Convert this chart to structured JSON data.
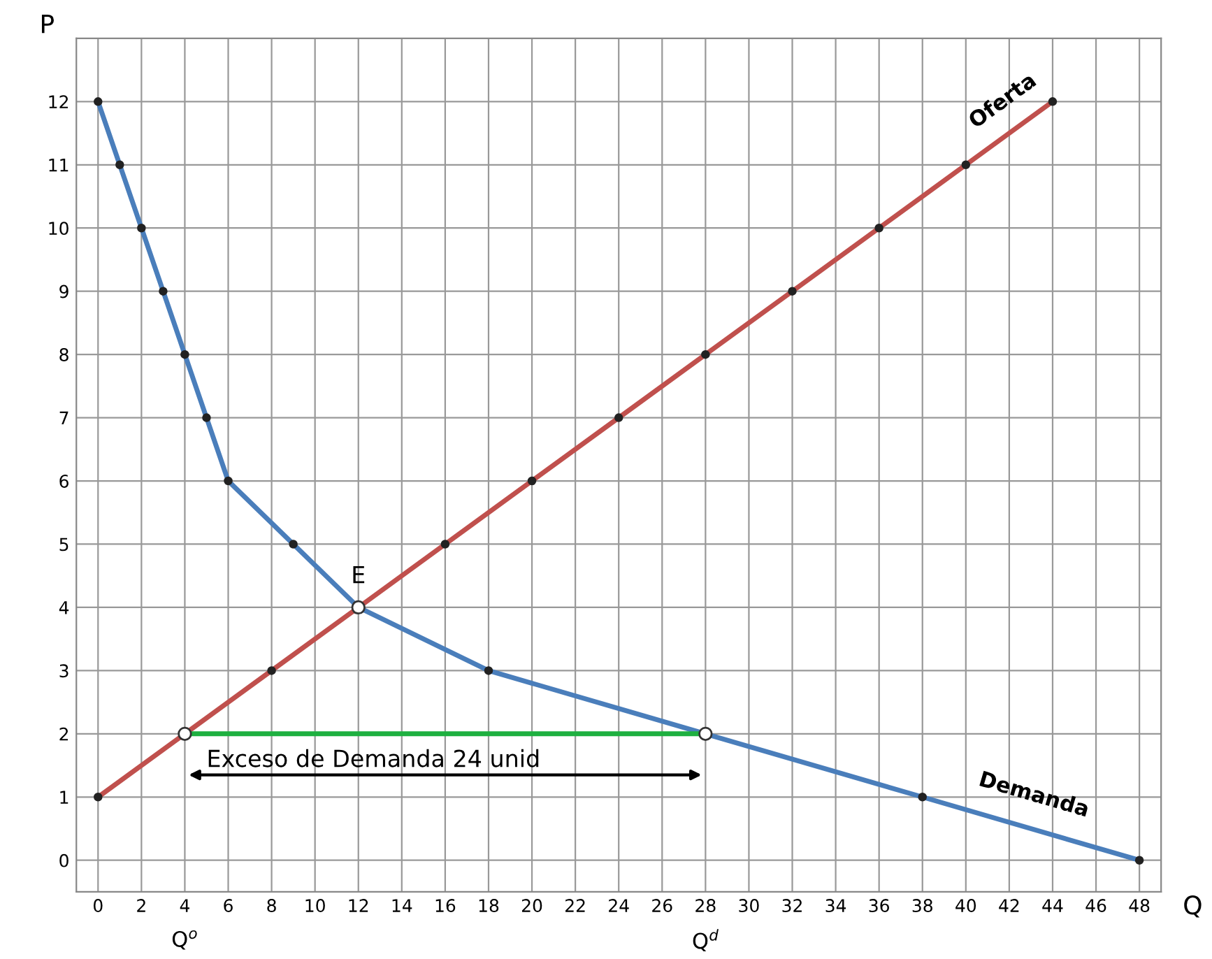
{
  "chart_data": {
    "type": "line",
    "xlabel": "Q",
    "ylabel": "P",
    "xlim": [
      -1,
      49
    ],
    "ylim": [
      -0.5,
      13
    ],
    "xticks": [
      0,
      2,
      4,
      6,
      8,
      10,
      12,
      14,
      16,
      18,
      20,
      22,
      24,
      26,
      28,
      30,
      32,
      34,
      36,
      38,
      40,
      42,
      44,
      46,
      48
    ],
    "yticks": [
      0,
      1,
      2,
      3,
      4,
      5,
      6,
      7,
      8,
      9,
      10,
      11,
      12
    ],
    "grid": true,
    "legend": false,
    "series": [
      {
        "name": "Demanda",
        "color": "#4a7ebb",
        "marker": "circle",
        "x": [
          0,
          1,
          2,
          3,
          4,
          5,
          6,
          9,
          12,
          18,
          28,
          38,
          48
        ],
        "values": [
          12,
          11,
          10,
          9,
          8,
          7,
          6,
          5,
          4,
          3,
          2,
          1,
          0
        ]
      },
      {
        "name": "Oferta",
        "color": "#c0504d",
        "marker": "circle",
        "x": [
          0,
          4,
          8,
          12,
          16,
          20,
          24,
          28,
          32,
          36,
          40,
          44
        ],
        "values": [
          1,
          2,
          3,
          4,
          5,
          6,
          7,
          8,
          9,
          10,
          11,
          12
        ]
      },
      {
        "type": "line",
        "color": "#1eb040",
        "marker": "none",
        "x": [
          4,
          28
        ],
        "values": [
          2,
          2
        ]
      },
      {
        "type": "scatter",
        "color": "#ffffff",
        "marker": "circle",
        "x": [
          4,
          12,
          28
        ],
        "values": [
          2,
          4,
          2
        ]
      }
    ],
    "annotations": [
      {
        "text": "E",
        "x": 12,
        "y": 4
      },
      "Exceso de Demanda 24 unid",
      "Q$^{o}$",
      "Q$^{d}$"
    ]
  }
}
